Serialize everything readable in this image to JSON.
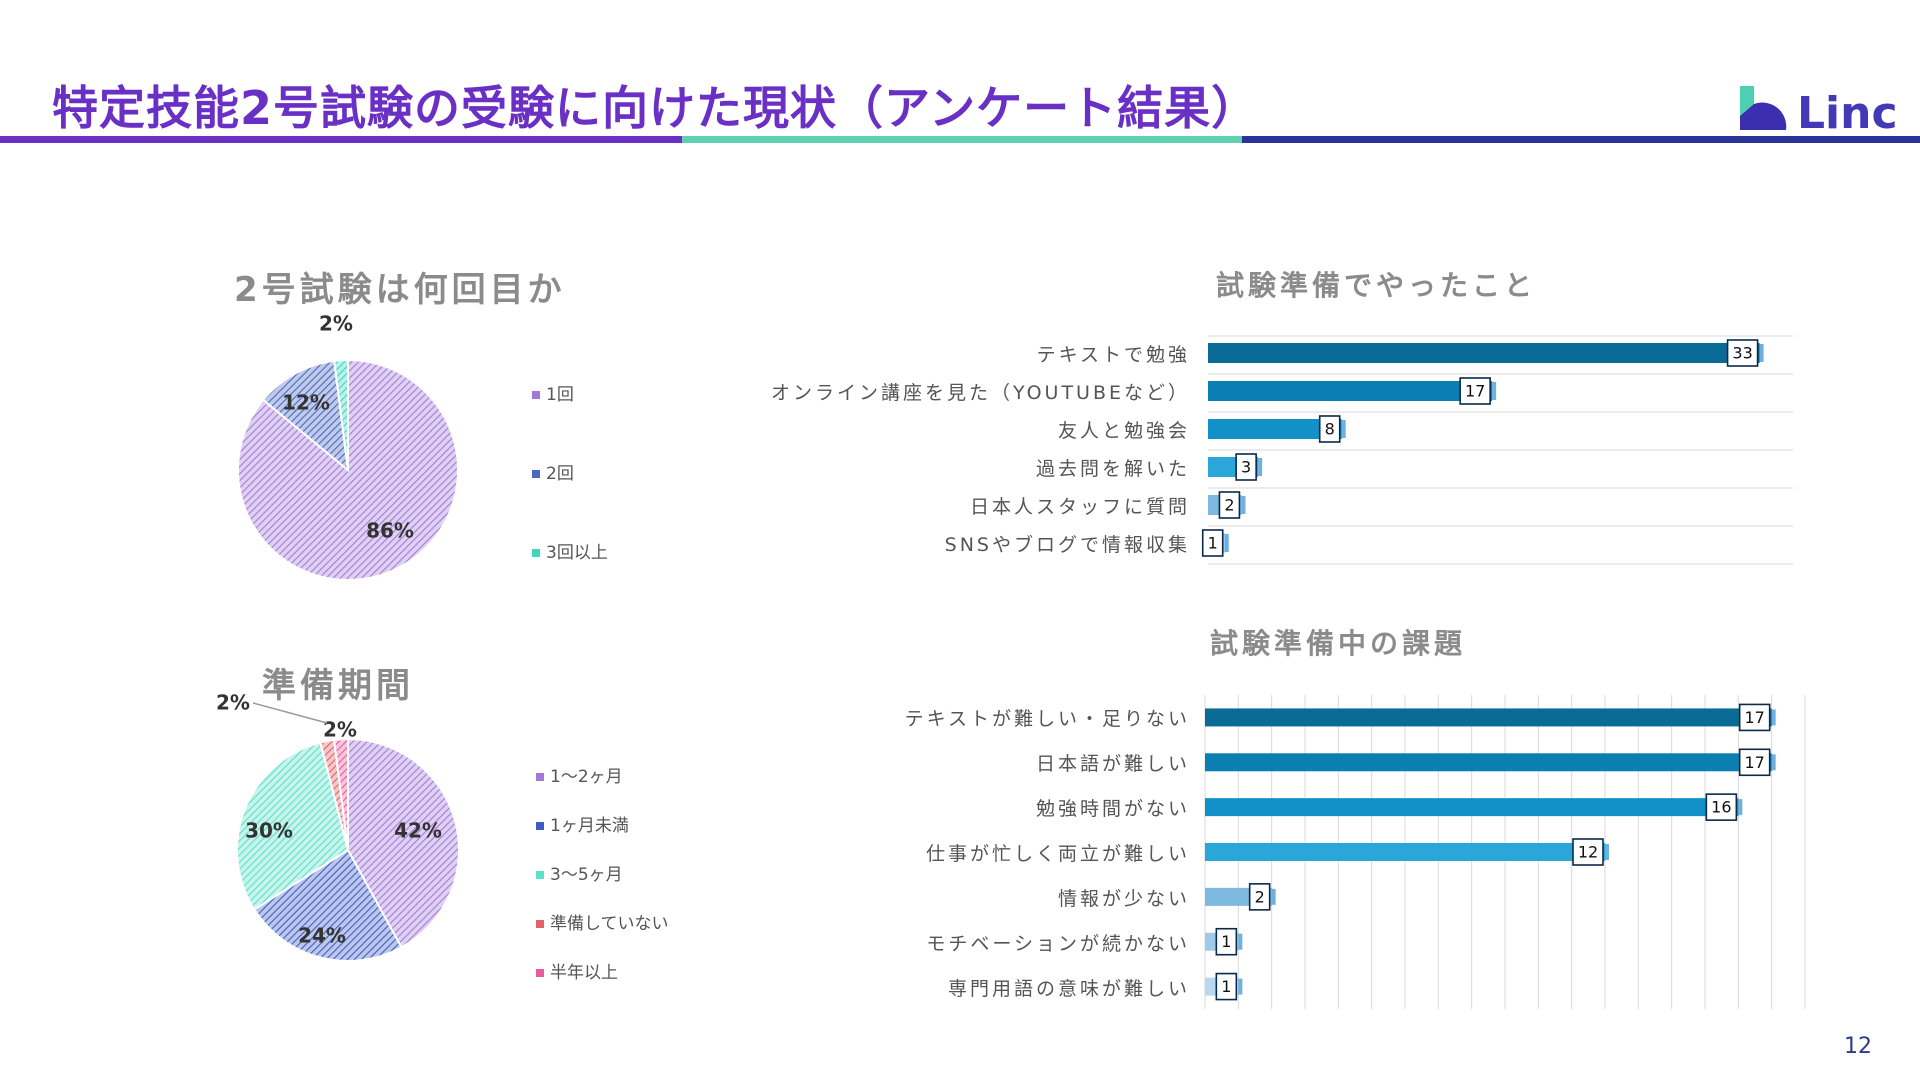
{
  "slide": {
    "title": "特定技能2号試験の受験に向けた現状（アンケート結果）",
    "logo": "Linc",
    "page_number": "12"
  },
  "colors": {
    "title": "#6a2fc4",
    "rule_left": "#6a2fc4",
    "rule_mid": "#5fd0b0",
    "rule_right": "#2a3396"
  },
  "chart_data": [
    {
      "type": "pie",
      "title": "2号試験は何回目か",
      "labels": [
        "1回",
        "2回",
        "3回以上"
      ],
      "values": [
        86,
        12,
        2
      ],
      "value_labels": [
        "86%",
        "12%",
        "2%"
      ],
      "colors": [
        "#a47ad9",
        "#4a68c0",
        "#3ed6c0"
      ],
      "legend": "right"
    },
    {
      "type": "pie",
      "title": "準備期間",
      "labels": [
        "1〜2ヶ月",
        "1ヶ月未満",
        "3〜5ヶ月",
        "準備していない",
        "半年以上"
      ],
      "values": [
        42,
        24,
        30,
        2,
        2
      ],
      "value_labels": [
        "42%",
        "24%",
        "30%",
        "2%",
        "2%"
      ],
      "colors": [
        "#a47ad9",
        "#3f5ec4",
        "#5fe0c8",
        "#e2626a",
        "#e95c9a"
      ],
      "legend": "right"
    },
    {
      "type": "bar",
      "orientation": "horizontal",
      "title": "試験準備でやったこと",
      "categories": [
        "テキストで勉強",
        "オンライン講座を見た（YOUTUBEなど）",
        "友人と勉強会",
        "過去問を解いた",
        "日本人スタッフに質問",
        "SNSやブログで情報収集"
      ],
      "values": [
        33,
        17,
        8,
        3,
        2,
        1
      ],
      "xlim": [
        0,
        35
      ],
      "grid": "horizontal"
    },
    {
      "type": "bar",
      "orientation": "horizontal",
      "title": "試験準備中の課題",
      "categories": [
        "テキストが難しい・足りない",
        "日本語が難しい",
        "勉強時間がない",
        "仕事が忙しく両立が難しい",
        "情報が少ない",
        "モチベーションが続かない",
        "専門用語の意味が難しい"
      ],
      "values": [
        17,
        17,
        16,
        12,
        2,
        1,
        1
      ],
      "xlim": [
        0,
        18
      ],
      "grid": "vertical"
    }
  ]
}
